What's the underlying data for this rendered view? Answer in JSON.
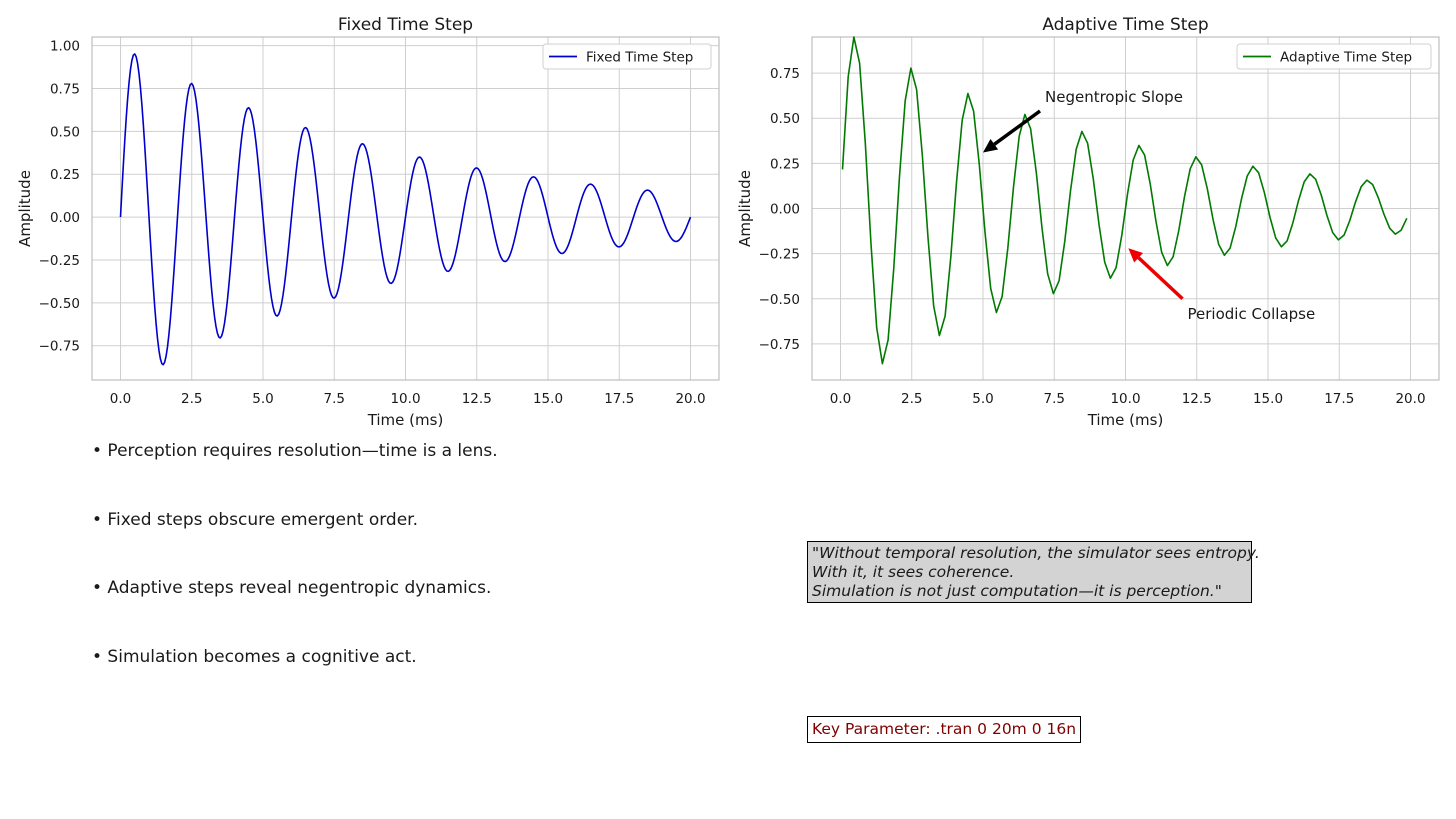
{
  "chart_data": [
    {
      "type": "line",
      "title": "Fixed Time Step",
      "xlabel": "Time (ms)",
      "ylabel": "Amplitude",
      "xlim": [
        -1,
        21
      ],
      "ylim": [
        -0.95,
        1.05
      ],
      "xticks": [
        "0.0",
        "2.5",
        "5.0",
        "7.5",
        "10.0",
        "12.5",
        "15.0",
        "17.5",
        "20.0"
      ],
      "yticks": [
        "-0.75",
        "-0.50",
        "-0.25",
        "0.00",
        "0.25",
        "0.50",
        "0.75",
        "1.00"
      ],
      "grid": true,
      "legend_position": "top-right",
      "series": [
        {
          "name": "Fixed Time Step",
          "color": "#0000cd",
          "function": "exp(-t/10) * sin(2*pi*0.5*t)",
          "x_start": 0,
          "x_end": 20,
          "step": 0.05
        }
      ]
    },
    {
      "type": "line",
      "title": "Adaptive Time Step",
      "xlabel": "Time (ms)",
      "ylabel": "Amplitude",
      "xlim": [
        -1,
        21
      ],
      "ylim": [
        -0.95,
        0.95
      ],
      "xticks": [
        "0.0",
        "2.5",
        "5.0",
        "7.5",
        "10.0",
        "12.5",
        "15.0",
        "17.5",
        "20.0"
      ],
      "yticks": [
        "-0.75",
        "-0.50",
        "-0.25",
        "0.00",
        "0.25",
        "0.50",
        "0.75"
      ],
      "grid": true,
      "legend_position": "top-right",
      "series": [
        {
          "name": "Adaptive Time Step",
          "color": "#007a00",
          "function": "exp(-t/10) * sin(2*pi*0.5*t)",
          "x_start": 0.07,
          "x_end": 19.8,
          "step": 0.2
        }
      ],
      "annotations": [
        {
          "text": "Negentropic Slope",
          "color": "#000000",
          "text_at": [
            7.0,
            0.54
          ],
          "arrow_to": [
            5.0,
            0.31
          ]
        },
        {
          "text": "Periodic Collapse",
          "color": "#ee0000",
          "text_at": [
            12.0,
            -0.5
          ],
          "arrow_to": [
            10.1,
            -0.22
          ]
        }
      ]
    }
  ],
  "bullets": [
    "• Perception requires resolution—time is a lens.",
    "• Fixed steps obscure emergent order.",
    "• Adaptive steps reveal negentropic dynamics.",
    "• Simulation becomes a cognitive act."
  ],
  "quote": {
    "lines": [
      "\"Without temporal resolution, the simulator sees entropy.",
      "With it, it sees coherence.",
      "Simulation is not just computation—it is perception.\""
    ],
    "background": "#d3d3d3"
  },
  "key_parameter": {
    "text": "Key Parameter: .tran 0 20m 0 16n",
    "color": "#800000"
  }
}
